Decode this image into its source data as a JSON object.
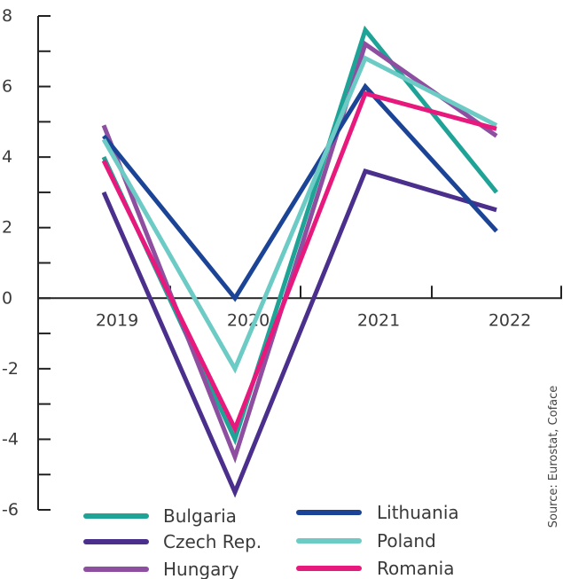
{
  "chart_data": {
    "type": "line",
    "categories": [
      "2019",
      "2020",
      "2021",
      "2022"
    ],
    "y_ticks": [
      "8",
      "6",
      "4",
      "2",
      "0",
      "-2",
      "-4",
      "-6"
    ],
    "ylim": [
      -6,
      8
    ],
    "grid": false,
    "legend_position": "bottom",
    "source": "Source: Eurostat, Coface",
    "series": [
      {
        "name": "Bulgaria",
        "color": "#1fa397",
        "values": [
          4.0,
          -4.0,
          7.6,
          3.0
        ]
      },
      {
        "name": "Czech Rep.",
        "color": "#4b2f8c",
        "values": [
          3.0,
          -5.5,
          3.6,
          2.5
        ]
      },
      {
        "name": "Hungary",
        "color": "#8e4fa0",
        "values": [
          4.9,
          -4.5,
          7.2,
          4.6
        ]
      },
      {
        "name": "Lithuania",
        "color": "#1b4496",
        "values": [
          4.6,
          0.0,
          6.0,
          1.9
        ]
      },
      {
        "name": "Poland",
        "color": "#6ccbc4",
        "values": [
          4.5,
          -2.0,
          6.8,
          4.9
        ]
      },
      {
        "name": "Romania",
        "color": "#e8197d",
        "values": [
          3.9,
          -3.7,
          5.8,
          4.8
        ]
      }
    ]
  }
}
